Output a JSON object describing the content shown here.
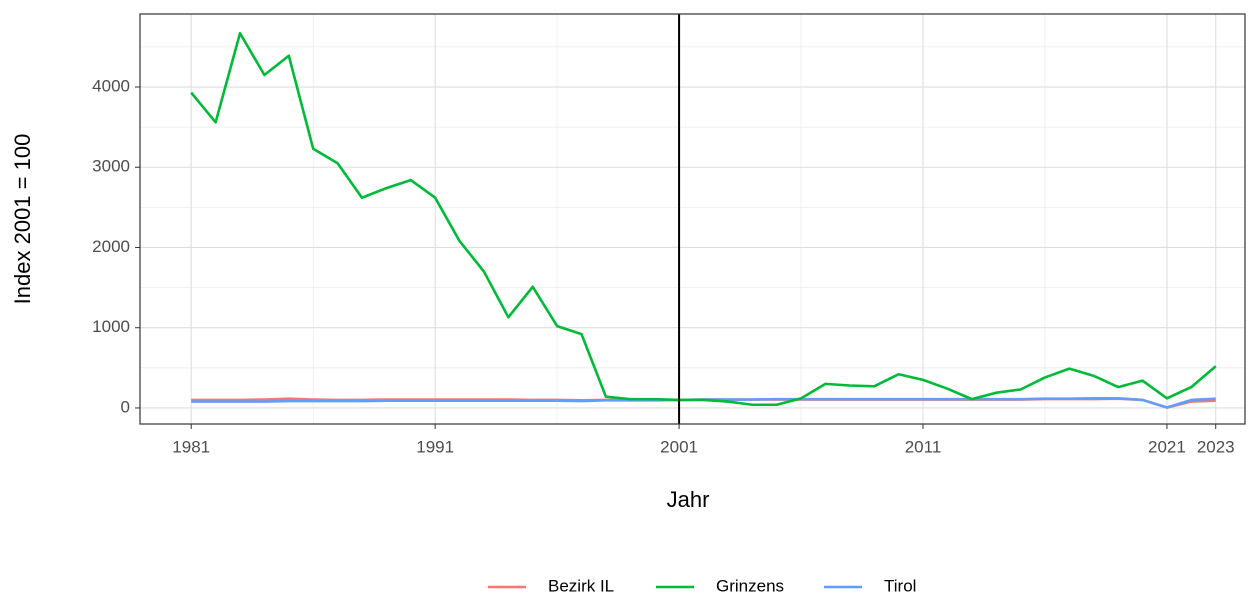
{
  "chart_data": {
    "type": "line",
    "x_label": "Jahr",
    "y_label": "Index 2001 = 100",
    "x": [
      1981,
      1982,
      1983,
      1984,
      1985,
      1986,
      1987,
      1988,
      1989,
      1990,
      1991,
      1992,
      1993,
      1994,
      1995,
      1996,
      1997,
      1998,
      1999,
      2000,
      2001,
      2002,
      2003,
      2004,
      2005,
      2006,
      2007,
      2008,
      2009,
      2010,
      2011,
      2012,
      2013,
      2014,
      2015,
      2016,
      2017,
      2018,
      2019,
      2020,
      2021,
      2022,
      2023
    ],
    "series": [
      {
        "name": "Bezirk IL",
        "color": "#F8766D",
        "values": [
          100,
          100,
          100,
          105,
          115,
          105,
          100,
          100,
          105,
          105,
          105,
          105,
          105,
          105,
          100,
          100,
          95,
          100,
          100,
          100,
          100,
          105,
          105,
          105,
          105,
          105,
          105,
          105,
          105,
          105,
          105,
          105,
          105,
          105,
          105,
          110,
          110,
          110,
          115,
          100,
          5,
          80,
          90
        ]
      },
      {
        "name": "Grinzens",
        "color": "#00BA38",
        "values": [
          3930,
          3560,
          4670,
          4150,
          4390,
          3230,
          3050,
          2620,
          2740,
          2840,
          2620,
          2080,
          1700,
          1130,
          1510,
          1020,
          920,
          140,
          110,
          110,
          100,
          100,
          80,
          40,
          40,
          120,
          300,
          280,
          270,
          420,
          350,
          240,
          110,
          190,
          230,
          380,
          490,
          400,
          260,
          340,
          120,
          260,
          520
        ]
      },
      {
        "name": "Tirol",
        "color": "#619CFF",
        "values": [
          80,
          80,
          80,
          80,
          85,
          85,
          85,
          85,
          90,
          90,
          90,
          90,
          90,
          90,
          90,
          90,
          85,
          95,
          95,
          95,
          100,
          105,
          105,
          105,
          110,
          110,
          110,
          110,
          110,
          110,
          110,
          110,
          110,
          110,
          110,
          115,
          115,
          120,
          120,
          100,
          5,
          100,
          115
        ]
      }
    ],
    "xlim": [
      1978.9,
      2024.2
    ],
    "xticks": [
      1981,
      1991,
      2001,
      2011,
      2021,
      2023
    ],
    "xminor": [
      1986,
      1996,
      2006,
      2016
    ],
    "ylim": [
      -200,
      4910
    ],
    "yticks": [
      0,
      1000,
      2000,
      3000,
      4000
    ],
    "yminor": [
      500,
      1500,
      2500,
      3500,
      4500
    ],
    "vline": 2001,
    "grid": true,
    "legend": "bottom"
  }
}
